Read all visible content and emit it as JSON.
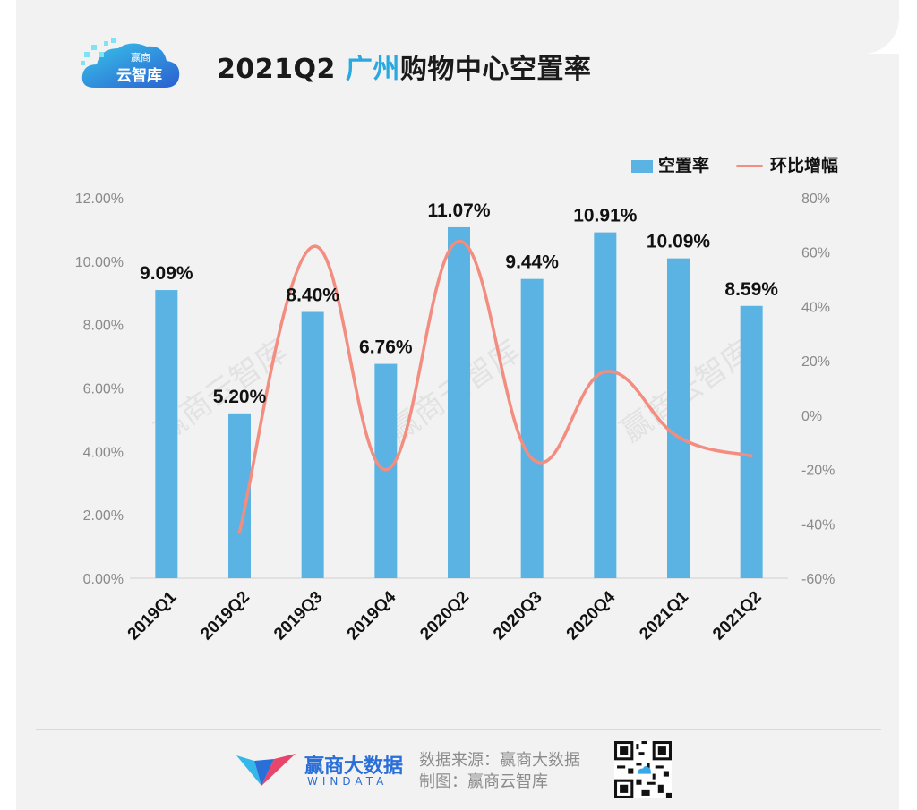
{
  "title_prefix": "2021Q2 ",
  "title_highlight": "广州",
  "title_suffix": "购物中心空置率",
  "logo_text_top": "赢商",
  "logo_text_bottom": "云智库",
  "legend": {
    "bar": "空置率",
    "line": "环比增幅"
  },
  "watermark": "赢商云智库",
  "footer": {
    "brand": "赢商大数据",
    "brand_sub": "WINDATA",
    "source_line1": "数据来源：赢商大数据",
    "source_line2": "制图：赢商云智库"
  },
  "colors": {
    "bar": "#5ab3e3",
    "line": "#f28d80",
    "accent": "#2aa8e0"
  },
  "chart_data": {
    "type": "bar",
    "categories": [
      "2019Q1",
      "2019Q2",
      "2019Q3",
      "2019Q4",
      "2020Q2",
      "2020Q3",
      "2020Q4",
      "2021Q1",
      "2021Q2"
    ],
    "series": [
      {
        "name": "空置率",
        "type": "bar",
        "axis": "left",
        "values": [
          9.09,
          5.2,
          8.4,
          6.76,
          11.07,
          9.44,
          10.91,
          10.09,
          8.59
        ],
        "labels": [
          "9.09%",
          "5.20%",
          "8.40%",
          "6.76%",
          "11.07%",
          "9.44%",
          "10.91%",
          "10.09%",
          "8.59%"
        ]
      },
      {
        "name": "环比增幅",
        "type": "line",
        "axis": "right",
        "values": [
          null,
          -43,
          62,
          -20,
          64,
          -16,
          16,
          -8,
          -15
        ]
      }
    ],
    "y_left": {
      "min": 0,
      "max": 12,
      "ticks": [
        "0.00%",
        "2.00%",
        "4.00%",
        "6.00%",
        "8.00%",
        "10.00%",
        "12.00%"
      ]
    },
    "y_right": {
      "min": -60,
      "max": 80,
      "ticks": [
        "-60%",
        "-40%",
        "-20%",
        "0%",
        "20%",
        "40%",
        "60%",
        "80%"
      ]
    },
    "legend_position": "top-right"
  }
}
